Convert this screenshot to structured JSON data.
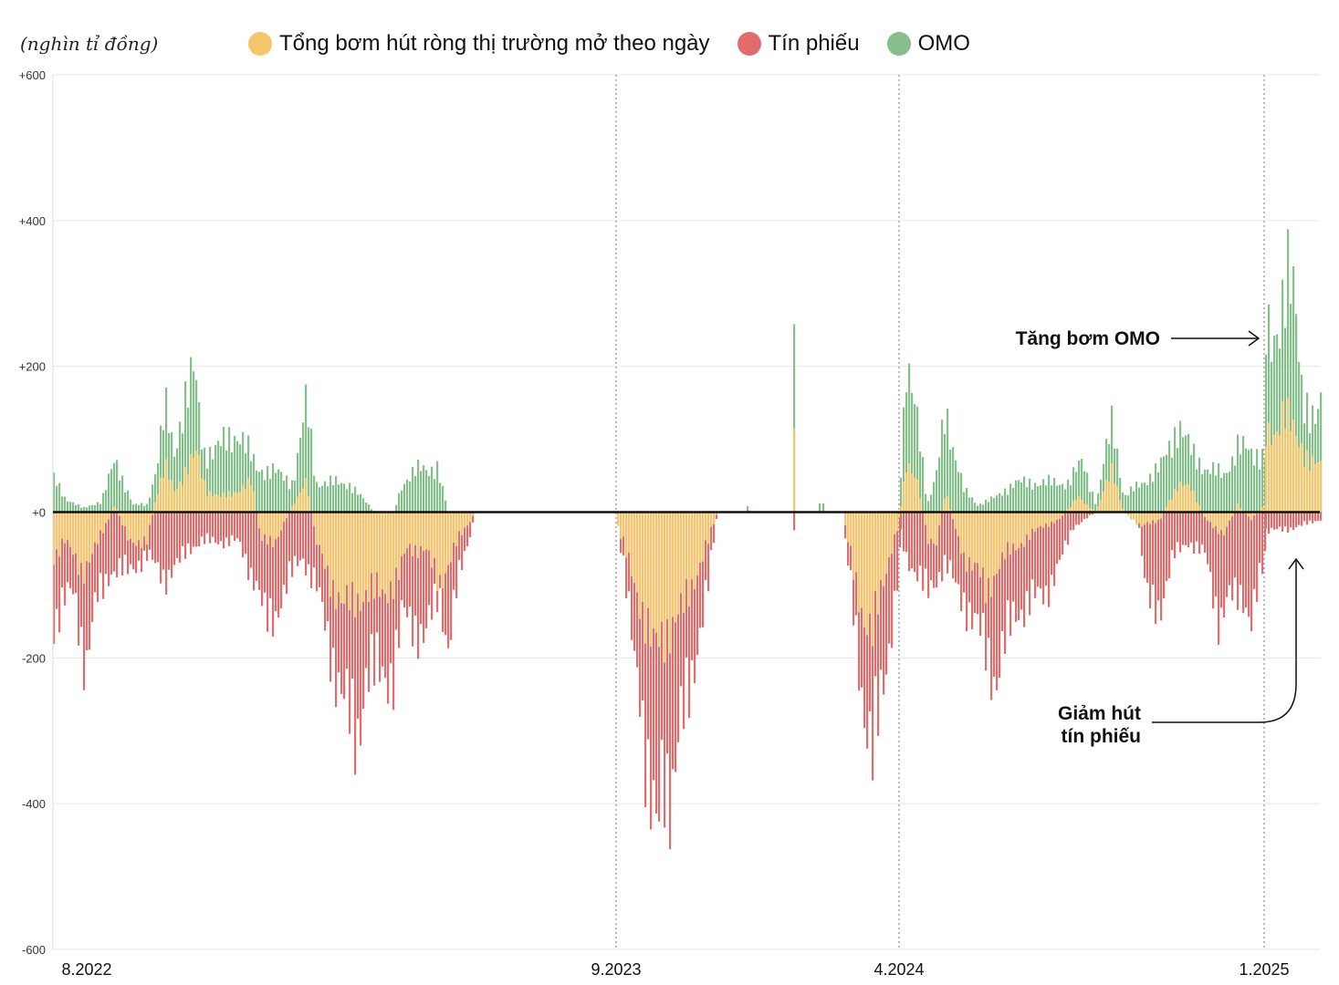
{
  "unit_label": "(nghìn tỉ đồng)",
  "legend": [
    {
      "label": "Tổng bơm hút ròng thị trường mở theo ngày",
      "color": "#f5c66a"
    },
    {
      "label": "Tín phiếu",
      "color": "#e06c6c"
    },
    {
      "label": "OMO",
      "color": "#85bf8c"
    }
  ],
  "annotations": {
    "omo_up": "Tăng bơm OMO",
    "bill_down_line1": "Giảm hút",
    "bill_down_line2": "tín phiếu"
  },
  "chart_data": {
    "type": "bar",
    "title": "",
    "xlabel": "",
    "ylabel": "(nghìn tỉ đồng)",
    "ylim": [
      -600,
      600
    ],
    "yticks": [
      600,
      400,
      200,
      0,
      -200,
      -400,
      -600
    ],
    "ytick_labels": [
      "+600",
      "+400",
      "+200",
      "+0",
      "-200",
      "-400",
      "-600"
    ],
    "x_markers": [
      "8.2022",
      "9.2023",
      "4.2024",
      "1.2025"
    ],
    "grid": true,
    "legend_position": "top",
    "series": [
      {
        "name": "Tổng bơm hút ròng thị trường mở theo ngày",
        "color": "#f5c66a"
      },
      {
        "name": "Tín phiếu",
        "color": "#e06c6c"
      },
      {
        "name": "OMO",
        "color": "#85bf8c"
      }
    ],
    "segments": [
      {
        "period": "8.2022 - 12.2022",
        "omo": [
          50,
          170
        ],
        "tin_phieu": [
          -60,
          -250
        ],
        "net": [
          -40,
          100
        ]
      },
      {
        "period": "1.2023 - 3.2023",
        "omo": [
          60,
          200
        ],
        "tin_phieu": [
          -40,
          -180
        ],
        "net": [
          -60,
          70
        ]
      },
      {
        "period": "3.2023 - 6.2023",
        "omo": [
          20,
          70
        ],
        "tin_phieu": [
          -200,
          -350
        ],
        "net": [
          -60,
          -200
        ]
      },
      {
        "period": "9.2023 - 12.2023",
        "omo": [
          0,
          0
        ],
        "tin_phieu": [
          -100,
          -510
        ],
        "net": [
          0,
          -205
        ]
      },
      {
        "period": "2.2024",
        "omo": [
          260,
          260
        ],
        "tin_phieu": [
          -25,
          -25
        ],
        "net": [
          115,
          115
        ]
      },
      {
        "period": "3.2024 - 4.2024",
        "omo": [
          0,
          10
        ],
        "tin_phieu": [
          -150,
          -340
        ],
        "net": [
          0,
          -170
        ]
      },
      {
        "period": "4.2024 - 12.2024",
        "omo": [
          20,
          185
        ],
        "tin_phieu": [
          -20,
          -255
        ],
        "net": [
          -120,
          70
        ]
      },
      {
        "period": "1.2025 - 2.2025",
        "omo": [
          240,
          315
        ],
        "tin_phieu": [
          -20,
          -30
        ],
        "net": [
          30,
          140
        ]
      }
    ]
  }
}
